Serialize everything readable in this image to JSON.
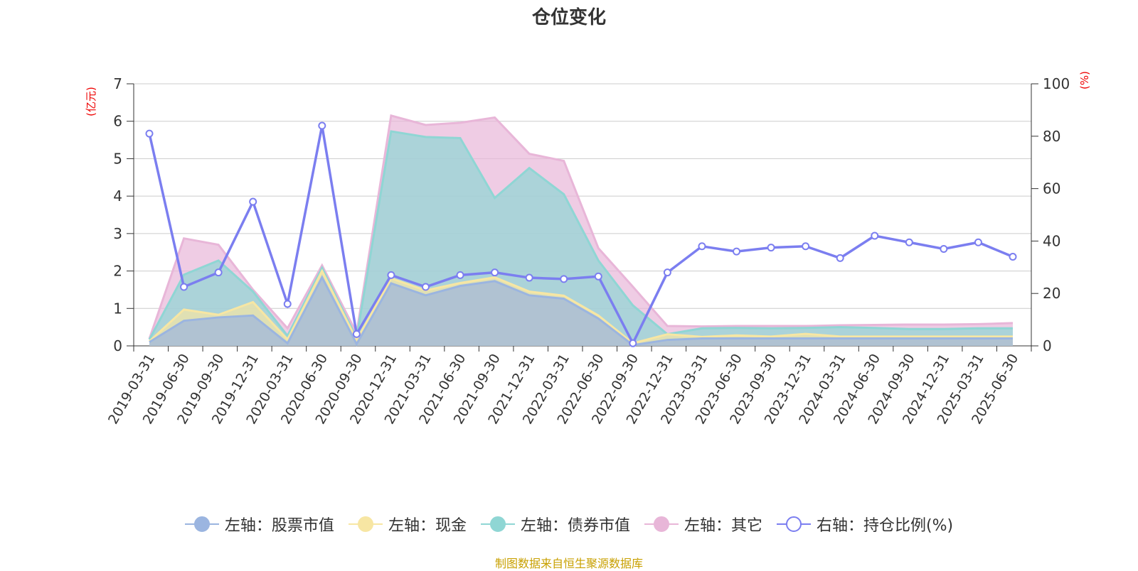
{
  "chart_data": {
    "type": "area",
    "title": "仓位变化",
    "left_axis": {
      "unit": "(亿元)",
      "ylim": [
        0,
        7
      ],
      "ticks": [
        "0",
        "1",
        "2",
        "3",
        "4",
        "5",
        "6",
        "7"
      ]
    },
    "right_axis": {
      "unit": "(%)",
      "ylim": [
        0,
        100
      ],
      "ticks": [
        "0",
        "20",
        "40",
        "60",
        "80",
        "100"
      ]
    },
    "categories": [
      "2019-03-31",
      "2019-06-30",
      "2019-09-30",
      "2019-12-31",
      "2020-03-31",
      "2020-06-30",
      "2020-09-30",
      "2020-12-31",
      "2021-03-31",
      "2021-06-30",
      "2021-09-30",
      "2021-12-31",
      "2022-03-31",
      "2022-06-30",
      "2022-09-30",
      "2022-12-31",
      "2023-03-31",
      "2023-06-30",
      "2023-09-30",
      "2023-12-31",
      "2024-03-31",
      "2024-06-30",
      "2024-09-30",
      "2024-12-31",
      "2025-03-31",
      "2025-06-30"
    ],
    "stack_series": [
      {
        "name": "左轴：股票市值",
        "color": "#9bb5e0",
        "values": [
          0.1,
          0.67,
          0.76,
          0.81,
          0.07,
          1.83,
          0.05,
          1.67,
          1.35,
          1.6,
          1.73,
          1.35,
          1.26,
          0.73,
          0.02,
          0.16,
          0.2,
          0.2,
          0.2,
          0.2,
          0.2,
          0.2,
          0.2,
          0.2,
          0.2,
          0.2
        ]
      },
      {
        "name": "左轴：现金",
        "color": "#f7e6a3",
        "values": [
          0.02,
          0.3,
          0.07,
          0.36,
          0.1,
          0.17,
          0.1,
          0.13,
          0.13,
          0.08,
          0.1,
          0.1,
          0.08,
          0.08,
          0.05,
          0.15,
          0.04,
          0.08,
          0.05,
          0.12,
          0.05,
          0.05,
          0.05,
          0.05,
          0.05,
          0.05
        ]
      },
      {
        "name": "左轴：债券市值",
        "color": "#8fd6d4",
        "values": [
          0.05,
          0.93,
          1.45,
          0.28,
          0.1,
          0.08,
          0.06,
          3.93,
          4.1,
          3.87,
          2.12,
          3.3,
          2.71,
          1.47,
          1.01,
          0,
          0.23,
          0.2,
          0.22,
          0.16,
          0.25,
          0.23,
          0.2,
          0.2,
          0.22,
          0.22
        ]
      },
      {
        "name": "左轴：其它",
        "color": "#e8b6d8",
        "values": [
          0.02,
          0.97,
          0.42,
          0.05,
          0.2,
          0.07,
          0.13,
          0.42,
          0.32,
          0.41,
          2.15,
          0.38,
          0.89,
          0.33,
          0.5,
          0.22,
          0.05,
          0.05,
          0.06,
          0.05,
          0.05,
          0.08,
          0.12,
          0.12,
          0.11,
          0.14
        ]
      }
    ],
    "line_series": {
      "name": "右轴：持仓比例(%)",
      "color": "#7b7ef0",
      "values": [
        81,
        22.5,
        28,
        55,
        16,
        84,
        4.5,
        27,
        22.5,
        27,
        28,
        26,
        25.5,
        26.5,
        1,
        28,
        38,
        36,
        37.5,
        38,
        33.5,
        42,
        39.5,
        37,
        39.5,
        34
      ]
    },
    "grid": true,
    "legend_position": "bottom"
  },
  "source_note": "制图数据来自恒生聚源数据库"
}
